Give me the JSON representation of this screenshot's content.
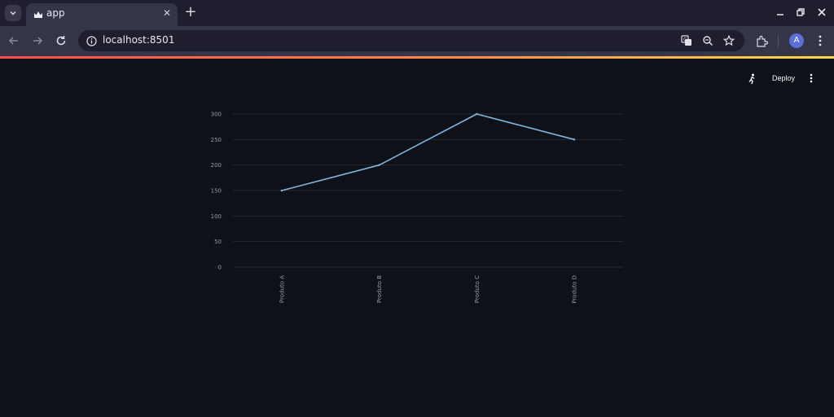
{
  "browser": {
    "tab_title": "app",
    "url": "localhost:8501",
    "avatar_letter": "A",
    "icons": [
      "tab-search-icon",
      "streamlit-crown-icon",
      "close-icon",
      "plus-icon",
      "minimize-icon",
      "restore-icon",
      "close-window-icon",
      "back-arrow-icon",
      "forward-arrow-icon",
      "reload-icon",
      "info-icon",
      "translate-icon",
      "zoom-icon",
      "star-icon",
      "extensions-icon",
      "kebab-menu-icon"
    ]
  },
  "app_header": {
    "deploy_label": "Deploy",
    "icons": [
      "running-man-icon",
      "main-menu-icon"
    ]
  },
  "colors": {
    "background": "#0e1117",
    "line": "#7fb6e0",
    "grid": "#262a33",
    "accent_start": "#ff4b4b",
    "accent_end": "#ffd84b"
  },
  "chart_data": {
    "type": "line",
    "categories": [
      "Produto A",
      "Produto B",
      "Produto C",
      "Produto D"
    ],
    "values": [
      150,
      200,
      300,
      250
    ],
    "yticks": [
      "0",
      "50",
      "100",
      "150",
      "200",
      "250",
      "300"
    ],
    "ylim": [
      0,
      300
    ],
    "grid": true,
    "title": "",
    "xlabel": "",
    "ylabel": ""
  }
}
